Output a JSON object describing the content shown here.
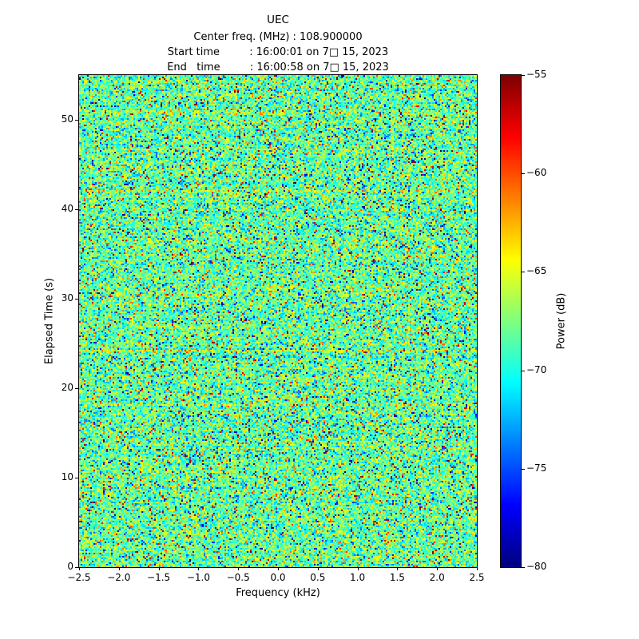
{
  "header": {
    "title": "UEC",
    "center_freq_line": "Center freq. (MHz) : 108.900000",
    "start_time_line": "Start time         : 16:00:01 on 7□ 15, 2023",
    "end_time_line": "End   time         : 16:00:58 on 7□ 15, 2023"
  },
  "chart_data": {
    "type": "heatmap",
    "title": "UEC",
    "subtitle_lines": [
      "Center freq. (MHz) : 108.900000",
      "Start time         : 16:00:01 on 7□ 15, 2023",
      "End   time         : 16:00:58 on 7□ 15, 2023"
    ],
    "xlabel": "Frequency (kHz)",
    "ylabel": "Elapsed Time (s)",
    "xlim": [
      -2.5,
      2.5
    ],
    "ylim": [
      0,
      55
    ],
    "xtick_values": [
      -2.5,
      -2.0,
      -1.5,
      -1.0,
      -0.5,
      0.0,
      0.5,
      1.0,
      1.5,
      2.0,
      2.5
    ],
    "xtick_labels": [
      "−2.5",
      "−2.0",
      "−1.5",
      "−1.0",
      "−0.5",
      "0.0",
      "0.5",
      "1.0",
      "1.5",
      "2.0",
      "2.5"
    ],
    "ytick_values": [
      0,
      10,
      20,
      30,
      40,
      50
    ],
    "ytick_labels": [
      "0",
      "10",
      "20",
      "30",
      "40",
      "50"
    ],
    "grid": false,
    "colorbar": {
      "label": "Power (dB)",
      "tick_values": [
        -55,
        -60,
        -65,
        -70,
        -75,
        -80
      ],
      "tick_labels": [
        "−55",
        "−60",
        "−65",
        "−70",
        "−75",
        "−80"
      ],
      "vmin": -80,
      "vmax": -55,
      "colormap": "jet",
      "position": "right"
    },
    "values": {
      "description": "broadband RF noise spectrogram; mostly green/cyan background near mean with sparse hot (orange/red) and cold (blue) speckles and a few faint hot horizontal stripes (e.g. near t≈1s, t≈24s, t≈45s)",
      "mean_db": -68.2,
      "std_db": 2.6,
      "hot_speckle_prob": 0.045,
      "cold_speckle_prob": 0.045,
      "hot_row_prob": 0.02,
      "seed": 42,
      "rows": 308,
      "cols": 249
    }
  }
}
